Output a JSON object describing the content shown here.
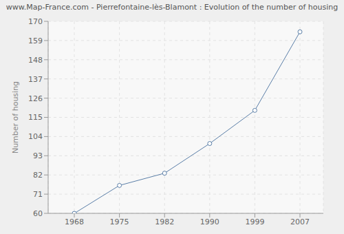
{
  "chart_data": {
    "type": "line",
    "title": "www.Map-France.com - Pierrefontaine-lès-Blamont : Evolution of the number of housing",
    "y_label": "Number of housing",
    "categories": [
      "1968",
      "1975",
      "1982",
      "1990",
      "1999",
      "2007"
    ],
    "values": [
      60,
      76,
      83,
      100,
      119,
      164
    ],
    "color": "#5b7fa8",
    "marker": "circle",
    "ylim": [
      60,
      170
    ],
    "yticks": [
      60,
      71,
      82,
      93,
      104,
      115,
      126,
      137,
      148,
      159,
      170
    ],
    "grid": true
  }
}
